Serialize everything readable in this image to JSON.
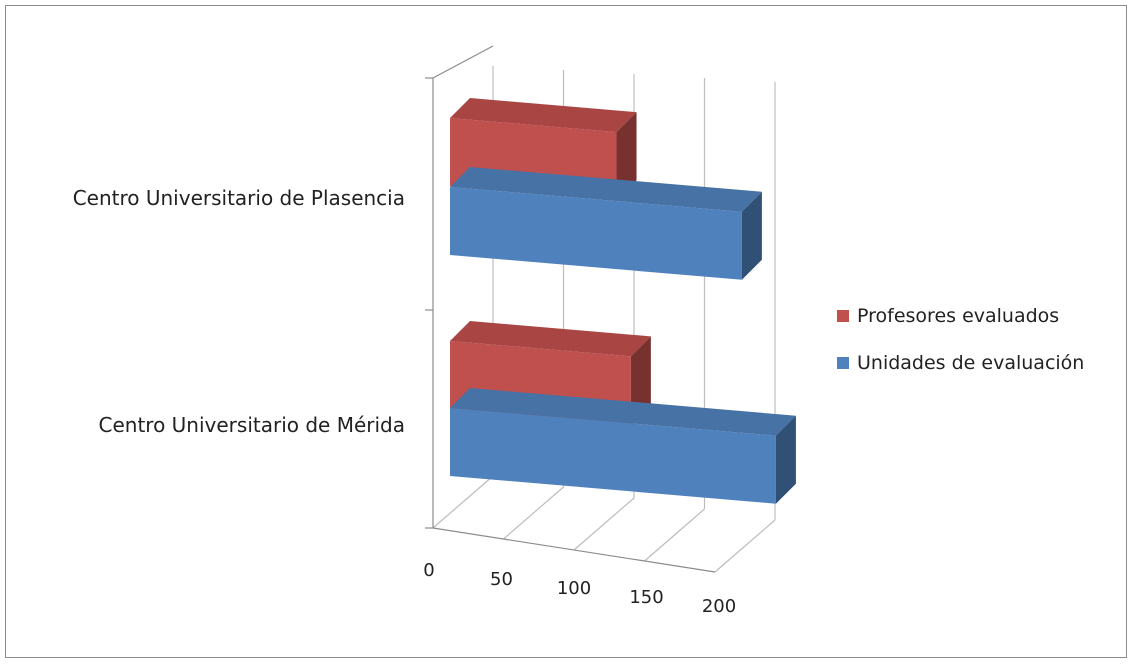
{
  "chart_data": {
    "type": "bar",
    "orientation": "horizontal",
    "style": "3d-clustered",
    "categories": [
      "Centro Universitario de Plasencia",
      "Centro Universitario de Mérida"
    ],
    "series": [
      {
        "name": "Profesores evaluados",
        "color": "#c0504d",
        "values": [
          93,
          101
        ]
      },
      {
        "name": "Unidades de evaluación",
        "color": "#4f81bd",
        "values": [
          163,
          182
        ]
      }
    ],
    "xlim": [
      0,
      200
    ],
    "xticks": [
      "0",
      "50",
      "100",
      "150",
      "200"
    ],
    "grid": true,
    "legend": "right"
  }
}
